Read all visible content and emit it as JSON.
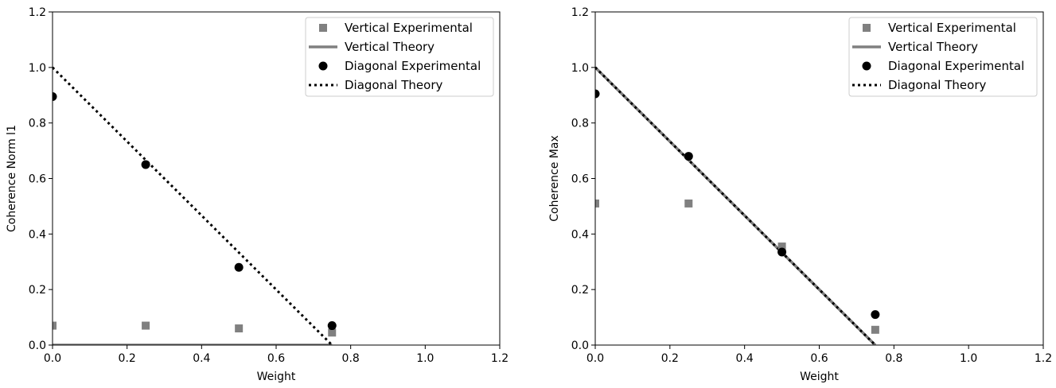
{
  "chart_data": [
    {
      "type": "scatter",
      "title": "",
      "xlabel": "Weight",
      "ylabel": "Coherence Norm l1",
      "xlim": [
        0.0,
        1.2
      ],
      "ylim": [
        0.0,
        1.2
      ],
      "xticks": [
        "0.0",
        "0.2",
        "0.4",
        "0.6",
        "0.8",
        "1.0",
        "1.2"
      ],
      "yticks": [
        "0.0",
        "0.2",
        "0.4",
        "0.6",
        "0.8",
        "1.0",
        "1.2"
      ],
      "legend_position": "top-right",
      "series": [
        {
          "name": "Vertical Experimental",
          "kind": "square-markers",
          "color": "#808080",
          "x": [
            0.0,
            0.25,
            0.5,
            0.75
          ],
          "y": [
            0.07,
            0.07,
            0.06,
            0.045
          ]
        },
        {
          "name": "Vertical Theory",
          "kind": "solid-line",
          "color": "#808080",
          "x": [
            0.0,
            0.75
          ],
          "y": [
            0.0,
            0.0
          ]
        },
        {
          "name": "Diagonal Experimental",
          "kind": "circle-markers",
          "color": "#000000",
          "x": [
            0.0,
            0.25,
            0.5,
            0.75
          ],
          "y": [
            0.895,
            0.65,
            0.28,
            0.07
          ]
        },
        {
          "name": "Diagonal Theory",
          "kind": "dotted-line",
          "color": "#000000",
          "x": [
            0.0,
            0.75
          ],
          "y": [
            1.0,
            0.0
          ]
        }
      ]
    },
    {
      "type": "scatter",
      "title": "",
      "xlabel": "Weight",
      "ylabel": "Coherence Max",
      "xlim": [
        0.0,
        1.2
      ],
      "ylim": [
        0.0,
        1.2
      ],
      "xticks": [
        "0.0",
        "0.2",
        "0.4",
        "0.6",
        "0.8",
        "1.0",
        "1.2"
      ],
      "yticks": [
        "0.0",
        "0.2",
        "0.4",
        "0.6",
        "0.8",
        "1.0",
        "1.2"
      ],
      "legend_position": "top-right",
      "series": [
        {
          "name": "Vertical Experimental",
          "kind": "square-markers",
          "color": "#808080",
          "x": [
            0.0,
            0.25,
            0.5,
            0.75
          ],
          "y": [
            0.51,
            0.51,
            0.355,
            0.055
          ]
        },
        {
          "name": "Vertical Theory",
          "kind": "solid-line",
          "color": "#808080",
          "x": [
            0.0,
            0.75
          ],
          "y": [
            1.0,
            0.0
          ]
        },
        {
          "name": "Diagonal Experimental",
          "kind": "circle-markers",
          "color": "#000000",
          "x": [
            0.0,
            0.25,
            0.5,
            0.75
          ],
          "y": [
            0.905,
            0.68,
            0.335,
            0.11
          ]
        },
        {
          "name": "Diagonal Theory",
          "kind": "dotted-line",
          "color": "#000000",
          "x": [
            0.0,
            0.75
          ],
          "y": [
            1.0,
            0.0
          ]
        }
      ]
    }
  ]
}
